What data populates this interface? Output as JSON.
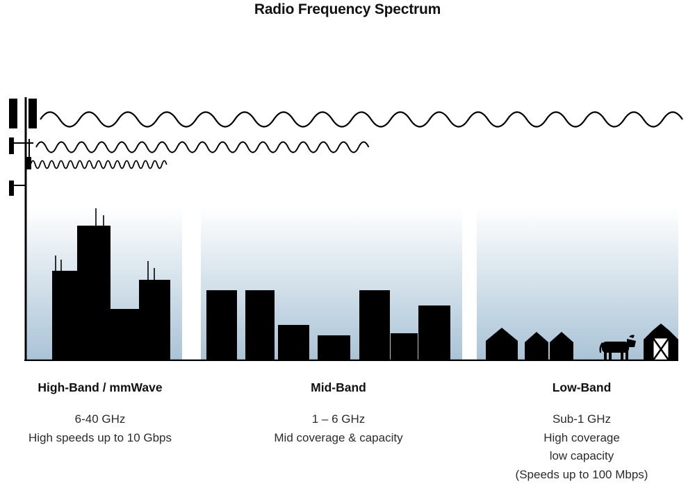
{
  "title": "Radio Frequency Spectrum",
  "bands": [
    {
      "name": "High-Band / mmWave",
      "frequency": "6-40 GHz",
      "details": [
        "High speeds up to 10 Gbps"
      ],
      "scene": "dense city skyline with rooftop antennas",
      "wave": "shortest wavelength, shortest reach"
    },
    {
      "name": "Mid-Band",
      "frequency": "1 – 6 GHz",
      "details": [
        "Mid coverage & capacity"
      ],
      "scene": "mid-rise buildings",
      "wave": "medium wavelength, medium reach"
    },
    {
      "name": "Low-Band",
      "frequency": "Sub-1 GHz",
      "details": [
        "High coverage",
        "low capacity",
        "(Speeds up to 100 Mbps)"
      ],
      "scene": "rural houses, cow and barn",
      "wave": "longest wavelength, longest reach"
    }
  ],
  "colors": {
    "silhouette": "#000000",
    "sky_gradient_top": "#ffffff",
    "sky_gradient_bottom": "#a9c3d6"
  }
}
